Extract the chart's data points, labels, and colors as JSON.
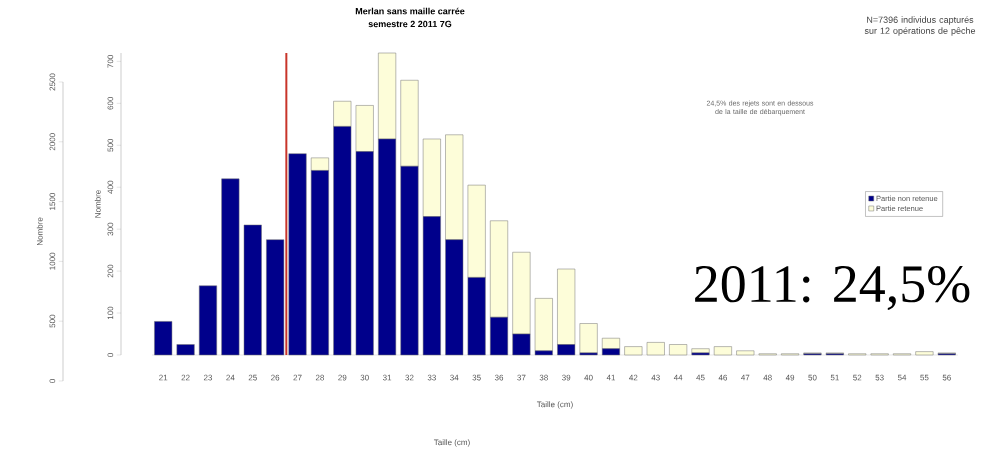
{
  "chart_data": {
    "type": "bar",
    "title": "Merlan sans maille carrée",
    "subtitle": "semestre 2 2011 7G",
    "xlabel": "Taille (cm)",
    "ylabel": "Nombre",
    "y2label": "Nombre",
    "annotations": [
      "N=7396 individus capturés sur 12 opérations de pêche",
      "24,5% des rejets sont en dessous de la taille de débarquement",
      "2011: 24,5%",
      "Taille (cm)"
    ],
    "x": [
      21,
      22,
      23,
      24,
      25,
      26,
      27,
      28,
      29,
      30,
      31,
      32,
      33,
      34,
      35,
      36,
      37,
      38,
      39,
      40,
      41,
      42,
      43,
      44,
      45,
      46,
      47,
      48,
      49,
      50,
      51,
      52,
      53,
      54,
      55,
      56
    ],
    "series": [
      {
        "name": "Partie non retenue",
        "color": "#00008b",
        "values": [
          80,
          25,
          165,
          420,
          310,
          275,
          480,
          440,
          545,
          485,
          515,
          450,
          330,
          275,
          185,
          90,
          50,
          10,
          25,
          5,
          15,
          0,
          0,
          0,
          5,
          0,
          0,
          0,
          0,
          3,
          3,
          0,
          0,
          0,
          0,
          3
        ]
      },
      {
        "name": "Partie retenue",
        "color": "#fdfdd9",
        "values": [
          0,
          0,
          0,
          0,
          0,
          0,
          0,
          30,
          60,
          110,
          205,
          205,
          185,
          250,
          220,
          230,
          195,
          125,
          180,
          70,
          25,
          20,
          30,
          25,
          10,
          20,
          10,
          3,
          3,
          2,
          2,
          3,
          3,
          3,
          8,
          2
        ]
      }
    ],
    "stacked": true,
    "xlim": [
      20.5,
      56.5
    ],
    "xticks": [
      21,
      22,
      23,
      24,
      25,
      26,
      27,
      28,
      29,
      30,
      31,
      32,
      33,
      34,
      35,
      36,
      37,
      38,
      39,
      40,
      41,
      42,
      43,
      44,
      45,
      46,
      47,
      48,
      49,
      50,
      51,
      52,
      53,
      54,
      55,
      56
    ],
    "ylim": [
      0,
      720
    ],
    "yticks": [
      0,
      100,
      200,
      300,
      400,
      500,
      600,
      700
    ],
    "y2lim": [
      0,
      2500
    ],
    "y2ticks": [
      0,
      500,
      1000,
      1500,
      2000,
      2500
    ],
    "ref_lines": [
      {
        "axis": "x",
        "value": 26.5,
        "color": "#c8352a"
      }
    ],
    "legend": "right"
  }
}
